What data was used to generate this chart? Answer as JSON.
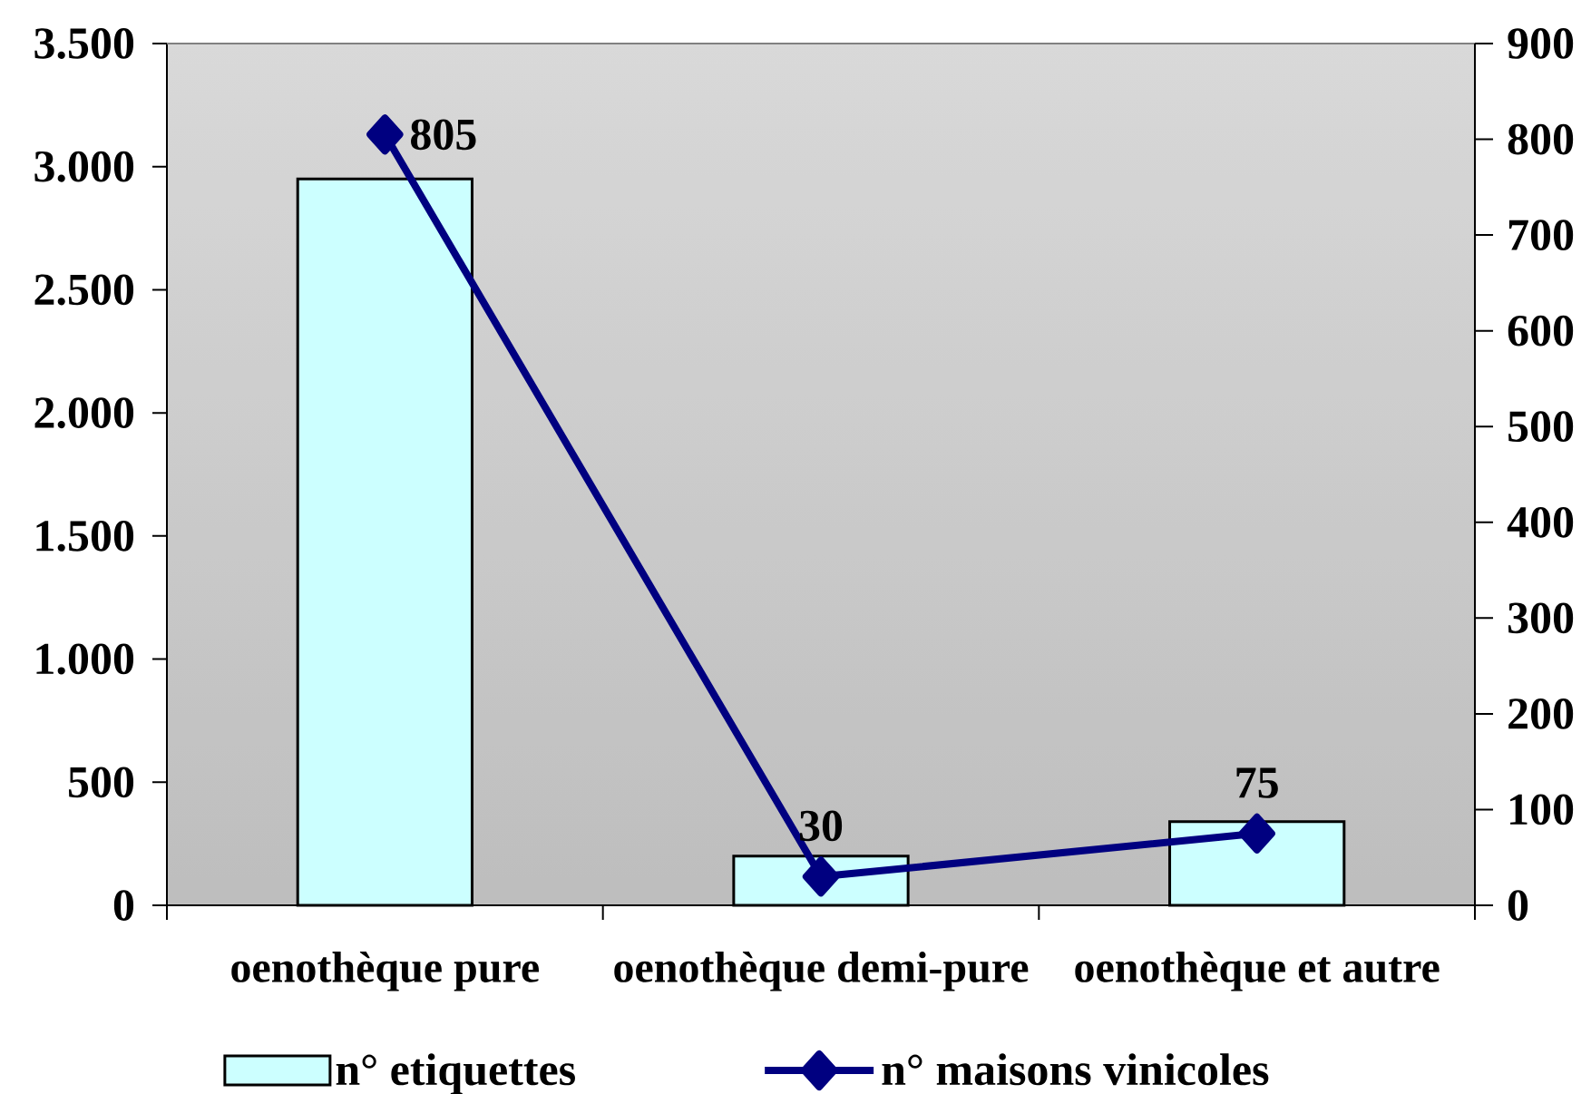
{
  "chart_data": {
    "type": "bar",
    "categories": [
      "oenothèque pure",
      "oenothèque demi-pure",
      "oenothèque et autre"
    ],
    "series": [
      {
        "name": "n° etiquettes",
        "color": "#ccffff",
        "values": [
          2950,
          200,
          340
        ]
      },
      {
        "name": "n° maisons vinicoles",
        "type": "line",
        "axis": "y2",
        "color": "#000080",
        "values": [
          805,
          30,
          75
        ],
        "value_labels": [
          "805",
          "30",
          "75"
        ]
      }
    ],
    "marker": "diamond",
    "line_style": "solid",
    "ylim": [
      0,
      3500
    ],
    "yticks": [
      0,
      500,
      {
        "value": 1000,
        "label": "1.000"
      },
      {
        "value": 1500,
        "label": "1.500"
      },
      {
        "value": 2000,
        "label": "2.000"
      },
      {
        "value": 2500,
        "label": "2.500"
      },
      {
        "value": 3000,
        "label": "3.000"
      },
      {
        "value": 3500,
        "label": "3.500"
      }
    ],
    "y2lim": [
      0,
      900
    ],
    "y2ticks": [
      0,
      100,
      200,
      300,
      400,
      500,
      600,
      700,
      800,
      900
    ],
    "legend": "bottom"
  }
}
